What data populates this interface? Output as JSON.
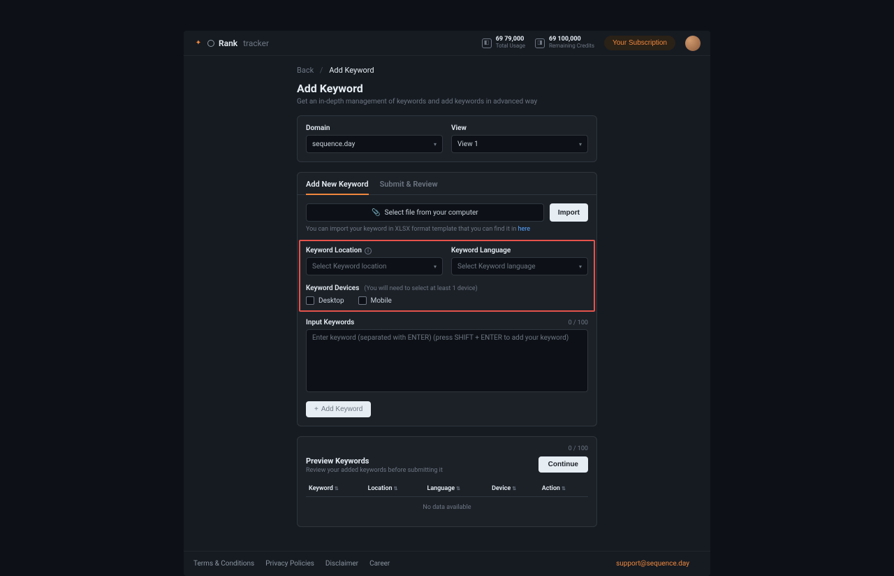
{
  "brand": {
    "name": "Rank",
    "sub": "tracker"
  },
  "credits": [
    {
      "amount": "69 79,000",
      "label": "Total Usage"
    },
    {
      "amount": "69 100,000",
      "label": "Remaining Credits"
    }
  ],
  "topbar": {
    "subscription_btn": "Your Subscription"
  },
  "breadcrumb": {
    "back": "Back",
    "current": "Add Keyword"
  },
  "page": {
    "title": "Add Keyword",
    "subtitle": "Get an in-depth management of keywords and add keywords in advanced way"
  },
  "domain_view": {
    "domain_label": "Domain",
    "domain_value": "sequence.day",
    "view_label": "View",
    "view_value": "View 1"
  },
  "tabs": {
    "add": "Add New Keyword",
    "submit": "Submit & Review"
  },
  "file": {
    "select_label": "Select file from your computer",
    "import_label": "Import",
    "hint_prefix": "You can import your keyword in XLSX format template that you can find it in ",
    "hint_link": "here"
  },
  "location": {
    "label": "Keyword Location",
    "placeholder": "Select Keyword location"
  },
  "language": {
    "label": "Keyword Language",
    "placeholder": "Select Keyword language"
  },
  "devices": {
    "label": "Keyword Devices",
    "hint": "(You will need to select at least 1 device)",
    "desktop": "Desktop",
    "mobile": "Mobile"
  },
  "input_kw": {
    "label": "Input Keywords",
    "count": "0 / 100",
    "placeholder": "Enter keyword (separated with ENTER) (press SHIFT + ENTER to add your keyword)"
  },
  "add_btn": "Add Keyword",
  "preview": {
    "count_top": "0 / 100",
    "title": "Preview Keywords",
    "subtitle": "Review your added keywords before submitting it",
    "continue": "Continue",
    "cols": {
      "keyword": "Keyword",
      "location": "Location",
      "language": "Language",
      "device": "Device",
      "action": "Action"
    },
    "no_data": "No data available"
  },
  "footer": {
    "links": [
      "Terms & Conditions",
      "Privacy Policies",
      "Disclaimer",
      "Career"
    ],
    "support": "support@sequence.day"
  }
}
